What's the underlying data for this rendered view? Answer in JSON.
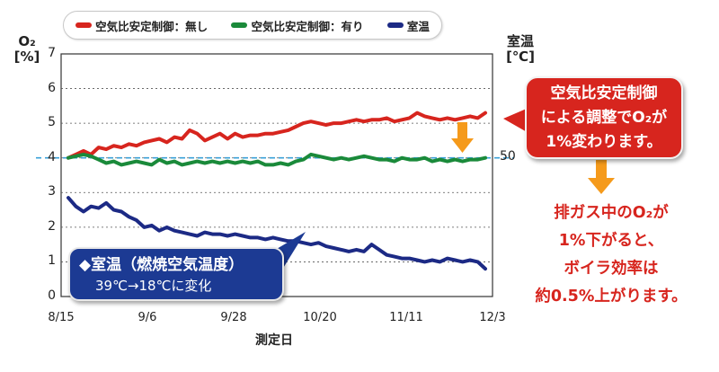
{
  "legend": {
    "items": [
      {
        "label": "空気比安定制御：無し",
        "color": "#d7251e"
      },
      {
        "label": "空気比安定制御：有り",
        "color": "#1a8a3a"
      },
      {
        "label": "室温",
        "color": "#1c2a85"
      }
    ]
  },
  "axes": {
    "left_title_line1": "O₂",
    "left_title_line2": "[%]",
    "right_title_line1": "室温",
    "right_title_line2": "[℃]",
    "right_tick": "50",
    "xlabel": "測定日"
  },
  "callouts": {
    "red_lines": [
      "空気比安定制御",
      "による調整でO₂が",
      "1%変わります。"
    ],
    "blue_line1": "◆室温（燃焼空気温度）",
    "blue_line2": "39℃→18℃に変化",
    "note_lines": [
      "排ガス中のO₂が",
      "1%下がると、",
      "ボイラ効率は",
      "約0.5%上がります。"
    ]
  },
  "chart_data": {
    "type": "line",
    "xlabel": "測定日",
    "ylabel": "O₂ [%]",
    "y2label": "室温 [℃]",
    "ylim": [
      0,
      7
    ],
    "yticks": [
      "0",
      "1",
      "2",
      "3",
      "4",
      "5",
      "6",
      "7"
    ],
    "xticks": [
      "8/15",
      "9/6",
      "9/28",
      "10/20",
      "11/11",
      "12/3"
    ],
    "grid": true,
    "reference_line": {
      "y": 4,
      "style": "dashed",
      "color": "#3aa0d8"
    },
    "x": [
      0,
      2,
      4,
      6,
      8,
      10,
      12,
      14,
      16,
      18,
      20,
      22,
      24,
      26,
      28,
      30,
      32,
      34,
      36,
      38,
      40,
      42,
      44,
      46,
      48,
      50,
      52,
      54,
      56,
      58,
      60,
      62,
      64,
      66,
      68,
      70,
      72,
      74,
      76,
      78,
      80,
      82,
      84,
      86,
      88,
      90,
      92,
      94,
      96,
      98,
      100,
      102,
      104,
      106,
      108,
      110
    ],
    "series": [
      {
        "name": "空気比安定制御：無し",
        "color": "#d7251e",
        "values": [
          4.0,
          4.1,
          4.2,
          4.1,
          4.3,
          4.25,
          4.35,
          4.3,
          4.4,
          4.35,
          4.45,
          4.5,
          4.55,
          4.45,
          4.6,
          4.55,
          4.8,
          4.7,
          4.5,
          4.6,
          4.7,
          4.55,
          4.7,
          4.6,
          4.65,
          4.65,
          4.7,
          4.7,
          4.75,
          4.8,
          4.9,
          5.0,
          5.05,
          5.0,
          4.95,
          5.0,
          5.0,
          5.05,
          5.1,
          5.05,
          5.1,
          5.1,
          5.15,
          5.05,
          5.1,
          5.15,
          5.3,
          5.2,
          5.15,
          5.1,
          5.15,
          5.1,
          5.15,
          5.2,
          5.15,
          5.3
        ]
      },
      {
        "name": "空気比安定制御：有り",
        "color": "#1a8a3a",
        "values": [
          4.0,
          4.05,
          4.1,
          4.05,
          3.95,
          3.85,
          3.9,
          3.8,
          3.85,
          3.9,
          3.85,
          3.8,
          3.95,
          3.85,
          3.9,
          3.8,
          3.85,
          3.9,
          3.85,
          3.9,
          3.85,
          3.9,
          3.85,
          3.9,
          3.85,
          3.9,
          3.8,
          3.8,
          3.85,
          3.8,
          3.9,
          3.95,
          4.1,
          4.05,
          4.0,
          3.95,
          4.0,
          3.95,
          4.0,
          4.05,
          4.0,
          3.95,
          3.95,
          3.9,
          4.0,
          3.95,
          3.95,
          4.0,
          3.9,
          3.95,
          3.9,
          3.95,
          3.9,
          3.95,
          3.95,
          4.0
        ]
      },
      {
        "name": "室温",
        "color": "#1c2a85",
        "values": [
          2.85,
          2.6,
          2.45,
          2.6,
          2.55,
          2.7,
          2.5,
          2.45,
          2.3,
          2.2,
          2.0,
          2.05,
          1.9,
          2.0,
          1.9,
          1.85,
          1.8,
          1.75,
          1.85,
          1.8,
          1.8,
          1.75,
          1.8,
          1.75,
          1.7,
          1.7,
          1.65,
          1.7,
          1.65,
          1.6,
          1.6,
          1.55,
          1.5,
          1.55,
          1.45,
          1.4,
          1.35,
          1.3,
          1.35,
          1.3,
          1.5,
          1.35,
          1.2,
          1.15,
          1.1,
          1.1,
          1.05,
          1.0,
          1.05,
          1.0,
          1.1,
          1.05,
          1.0,
          1.05,
          1.0,
          0.8
        ]
      }
    ]
  }
}
